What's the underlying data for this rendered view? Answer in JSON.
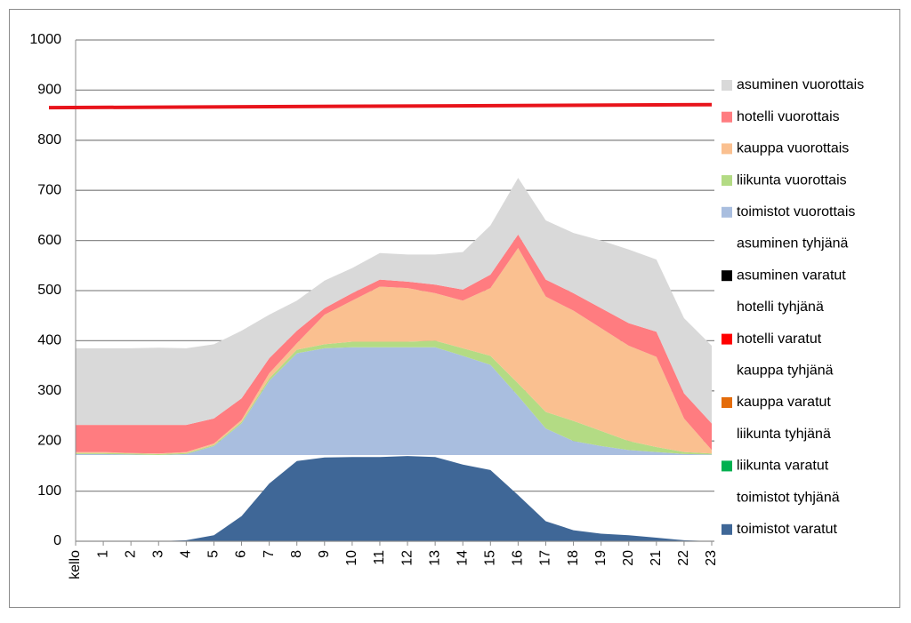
{
  "chart_data": {
    "type": "stacked-area",
    "categories": [
      "kello",
      "1",
      "2",
      "3",
      "4",
      "5",
      "6",
      "7",
      "8",
      "9",
      "10",
      "11",
      "12",
      "13",
      "14",
      "15",
      "16",
      "17",
      "18",
      "19",
      "20",
      "21",
      "22",
      "23"
    ],
    "ylim": [
      0,
      1000
    ],
    "yticks": [
      0,
      100,
      200,
      300,
      400,
      500,
      600,
      700,
      800,
      900,
      1000
    ],
    "grid": true,
    "series": [
      {
        "name": "asuminen vuorottais",
        "color": "#d9d9d9",
        "values": [
          153,
          153,
          153,
          154,
          153,
          148,
          135,
          87,
          60,
          55,
          50,
          53,
          54,
          60,
          75,
          98,
          113,
          118,
          120,
          135,
          147,
          144,
          150,
          155
        ]
      },
      {
        "name": "hotelli vuorottais",
        "color": "#ff7c80",
        "values": [
          54,
          54,
          56,
          57,
          54,
          50,
          43,
          30,
          25,
          13,
          15,
          14,
          13,
          17,
          22,
          27,
          27,
          34,
          35,
          40,
          45,
          50,
          50,
          53
        ]
      },
      {
        "name": "kauppa vuorottais",
        "color": "#fac090",
        "values": [
          2,
          2,
          1,
          1,
          2,
          3,
          4,
          10,
          13,
          59,
          82,
          110,
          107,
          95,
          95,
          135,
          270,
          230,
          220,
          205,
          190,
          180,
          67,
          7
        ]
      },
      {
        "name": "liikunta vuorottais",
        "color": "#b3db84",
        "values": [
          2,
          2,
          2,
          2,
          2,
          2,
          3,
          5,
          7,
          8,
          11,
          11,
          11,
          13,
          15,
          18,
          25,
          33,
          40,
          30,
          18,
          10,
          4,
          2
        ]
      },
      {
        "name": "toimistot vuorottais",
        "color": "#a9bedf",
        "values": [
          2,
          2,
          1,
          0,
          2,
          18,
          63,
          148,
          203,
          213,
          215,
          215,
          215,
          215,
          198,
          180,
          118,
          53,
          28,
          18,
          10,
          6,
          2,
          1
        ]
      },
      {
        "name": "asuminen tyhjänä",
        "color": "none",
        "values": [
          0,
          0,
          0,
          0,
          0,
          0,
          0,
          0,
          0,
          0,
          0,
          0,
          0,
          0,
          0,
          0,
          0,
          0,
          0,
          0,
          0,
          0,
          0,
          0
        ]
      },
      {
        "name": "asuminen varatut",
        "color": "#000000",
        "values": [
          0,
          0,
          0,
          0,
          0,
          0,
          0,
          0,
          0,
          0,
          0,
          0,
          0,
          0,
          0,
          0,
          0,
          0,
          0,
          0,
          0,
          0,
          0,
          0
        ]
      },
      {
        "name": "hotelli tyhjänä",
        "color": "none",
        "values": [
          0,
          0,
          0,
          0,
          0,
          0,
          0,
          0,
          0,
          0,
          0,
          0,
          0,
          0,
          0,
          0,
          0,
          0,
          0,
          0,
          0,
          0,
          0,
          0
        ]
      },
      {
        "name": "hotelli varatut",
        "color": "#ff0000",
        "values": [
          0,
          0,
          0,
          0,
          0,
          0,
          0,
          0,
          0,
          0,
          0,
          0,
          0,
          0,
          0,
          0,
          0,
          0,
          0,
          0,
          0,
          0,
          0,
          0
        ]
      },
      {
        "name": "kauppa tyhjänä",
        "color": "none",
        "values": [
          0,
          0,
          0,
          0,
          0,
          0,
          0,
          0,
          0,
          0,
          0,
          0,
          0,
          0,
          0,
          0,
          0,
          0,
          0,
          0,
          0,
          0,
          0,
          0
        ]
      },
      {
        "name": "kauppa varatut",
        "color": "#e46c0a",
        "values": [
          0,
          0,
          0,
          0,
          0,
          0,
          0,
          0,
          0,
          0,
          0,
          0,
          0,
          0,
          0,
          0,
          0,
          0,
          0,
          0,
          0,
          0,
          0,
          0
        ]
      },
      {
        "name": "liikunta tyhjänä",
        "color": "none",
        "values": [
          0,
          0,
          0,
          0,
          0,
          0,
          0,
          0,
          0,
          0,
          0,
          0,
          0,
          0,
          0,
          0,
          0,
          0,
          0,
          0,
          0,
          0,
          0,
          0
        ]
      },
      {
        "name": "liikunta varatut",
        "color": "#00b050",
        "values": [
          0,
          0,
          0,
          0,
          0,
          0,
          0,
          0,
          0,
          0,
          0,
          0,
          0,
          0,
          0,
          0,
          0,
          0,
          0,
          0,
          0,
          0,
          0,
          0
        ]
      },
      {
        "name": "toimistot tyhjänä",
        "color": "none",
        "values": [
          172,
          172,
          172,
          172,
          170,
          160,
          122,
          57,
          12,
          5,
          4,
          4,
          2,
          4,
          19,
          30,
          80,
          132,
          150,
          157,
          160,
          165,
          170,
          172
        ]
      },
      {
        "name": "toimistot varatut",
        "color": "#3f6797",
        "values": [
          0,
          0,
          0,
          0,
          2,
          12,
          50,
          115,
          160,
          167,
          168,
          168,
          170,
          168,
          153,
          142,
          92,
          40,
          22,
          15,
          12,
          7,
          2,
          0
        ]
      }
    ],
    "reference_line": {
      "color": "#e8141b",
      "start": 865,
      "end": 871
    }
  }
}
